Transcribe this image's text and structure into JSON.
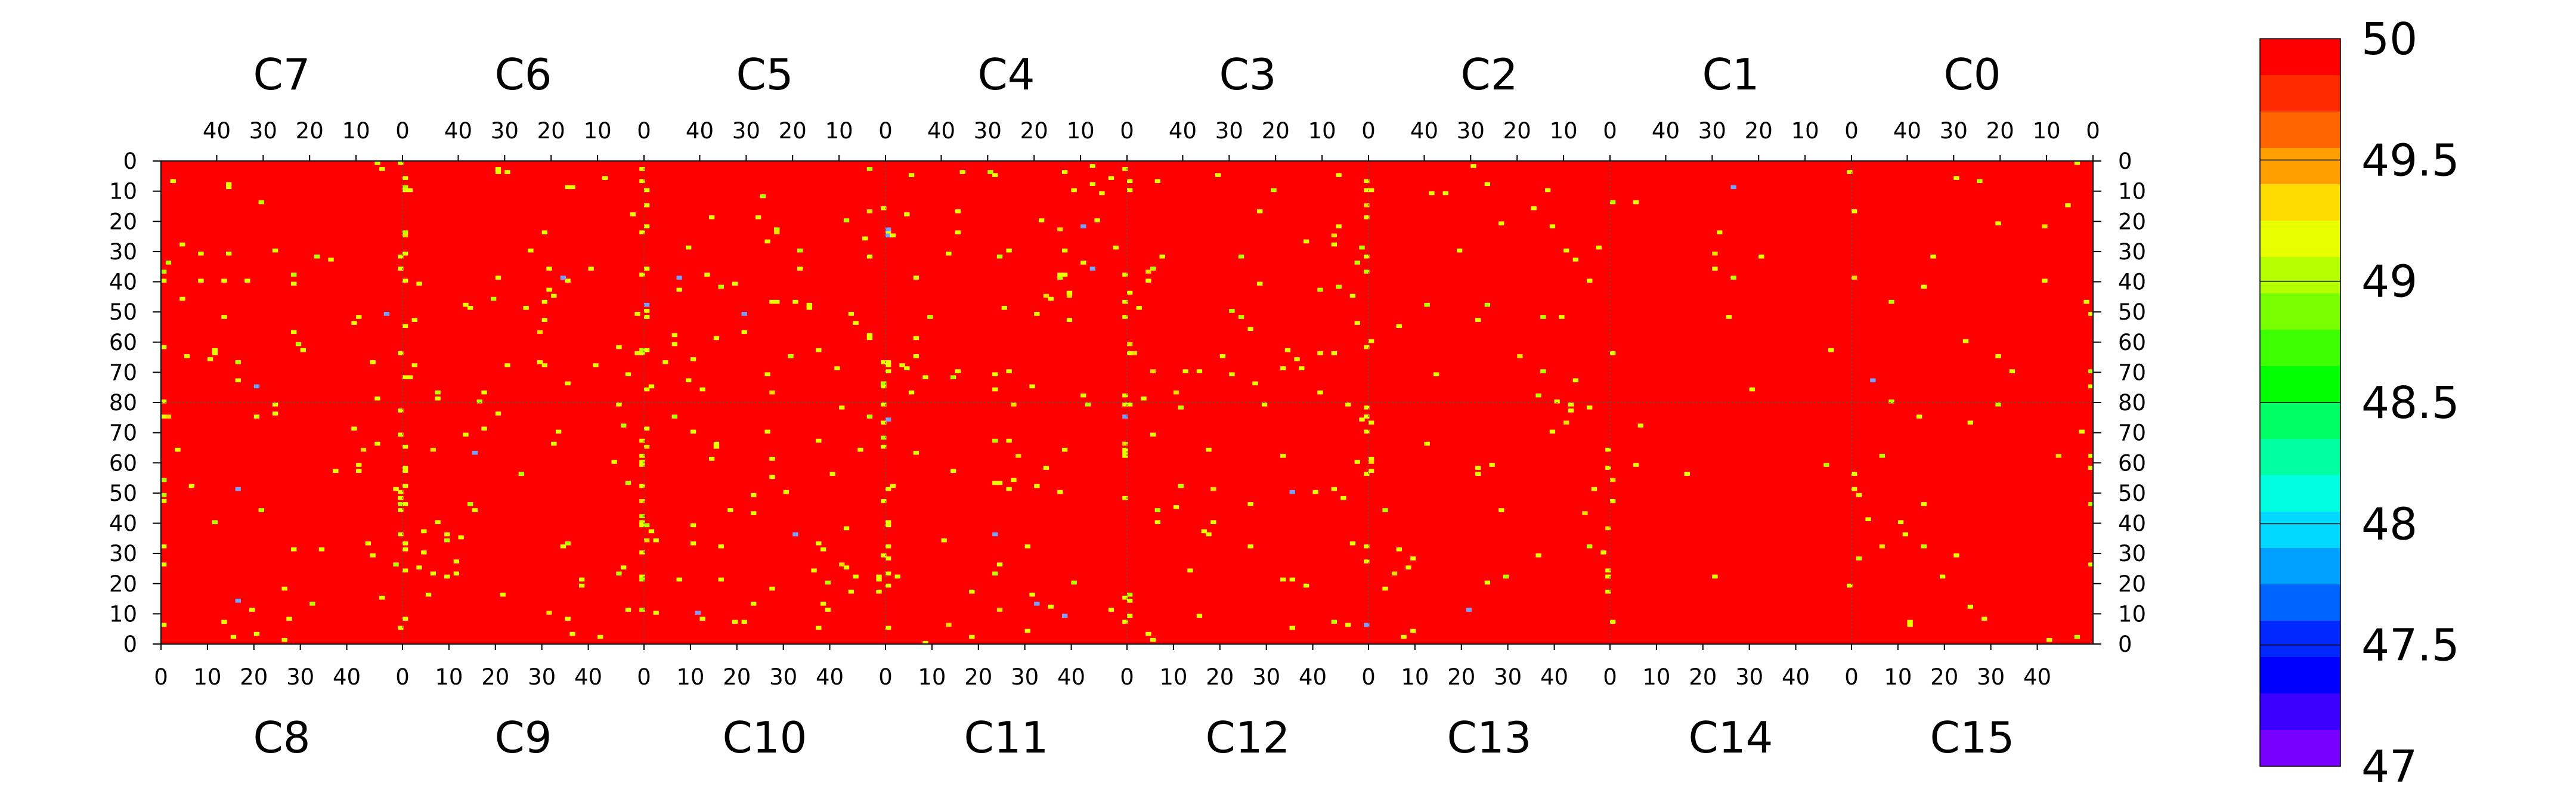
{
  "chart_data": {
    "type": "heatmap",
    "top_chips": [
      "C7",
      "C6",
      "C5",
      "C4",
      "C3",
      "C2",
      "C1",
      "C0"
    ],
    "bottom_chips": [
      "C8",
      "C9",
      "C10",
      "C11",
      "C12",
      "C13",
      "C14",
      "C15"
    ],
    "x_ticks_top": [
      "40",
      "30",
      "20",
      "10",
      "0"
    ],
    "x_ticks_bottom": [
      "0",
      "10",
      "20",
      "30",
      "40"
    ],
    "y_ticks": [
      "0",
      "10",
      "20",
      "30",
      "40",
      "50",
      "60",
      "70",
      "80",
      "70",
      "60",
      "50",
      "40",
      "30",
      "20",
      "10",
      "0"
    ],
    "colorbar": {
      "min": 47,
      "max": 50,
      "labels": [
        "50",
        "49.5",
        "49",
        "48.5",
        "48",
        "47.5",
        "47"
      ],
      "colors": [
        "#ff0000",
        "#ff2a00",
        "#ff6400",
        "#ffa000",
        "#ffdc00",
        "#e8ff00",
        "#b4ff00",
        "#78ff00",
        "#3cff00",
        "#00ff00",
        "#00ff64",
        "#00ffa0",
        "#00ffe0",
        "#00d8ff",
        "#00a0ff",
        "#0064ff",
        "#0028ff",
        "#0000ff",
        "#3c00ff",
        "#7800ff"
      ]
    },
    "background_value": 50,
    "grid": true,
    "legend_position": "right"
  }
}
